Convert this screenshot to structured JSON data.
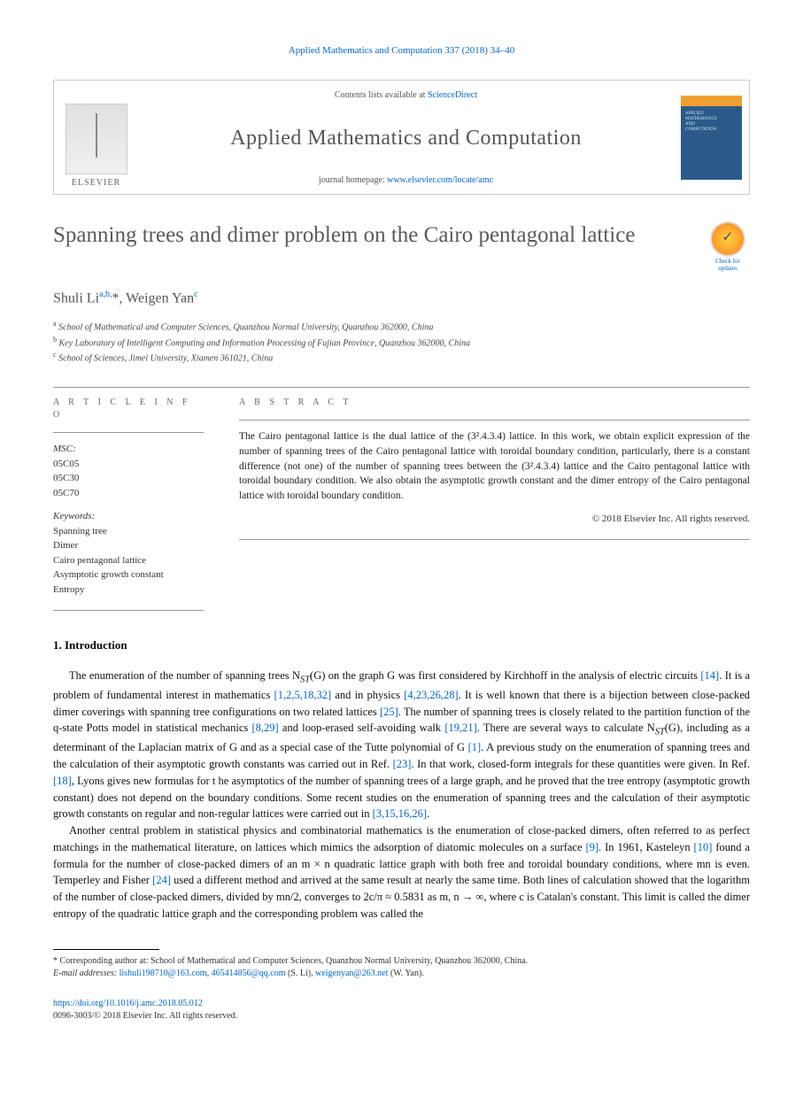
{
  "running_head": {
    "journal": "Applied Mathematics and Computation",
    "citation": "337 (2018) 34–40"
  },
  "masthead": {
    "contents_prefix": "Contents lists available at ",
    "contents_link": "ScienceDirect",
    "journal_name": "Applied Mathematics and Computation",
    "homepage_prefix": "journal homepage: ",
    "homepage_link": "www.elsevier.com/locate/amc",
    "publisher_label": "ELSEVIER",
    "cover_text": "APPLIED\nMATHEMATICS\nAND\nCOMPUTATION"
  },
  "crossmark": {
    "label": "Check for updates"
  },
  "article": {
    "title": "Spanning trees and dimer problem on the Cairo pentagonal lattice",
    "authors_html": "Shuli Li<sup>a,b,</sup>*, Weigen Yan<sup>c</sup>",
    "affiliations": [
      {
        "sup": "a",
        "text": "School of Mathematical and Computer Sciences, Quanzhou Normal University, Quanzhou 362000, China"
      },
      {
        "sup": "b",
        "text": "Key Laboratory of Intelligent Computing and Information Processing of Fujian Province, Quanzhou 362000, China"
      },
      {
        "sup": "c",
        "text": "School of Sciences, Jimei University, Xiamen 361021, China"
      }
    ]
  },
  "article_info": {
    "label": "A R T I C L E   I N F O",
    "msc_label": "MSC:",
    "msc": [
      "05C05",
      "05C30",
      "05C70"
    ],
    "keywords_label": "Keywords:",
    "keywords": [
      "Spanning tree",
      "Dimer",
      "Cairo pentagonal lattice",
      "Asymptotic growth constant",
      "Entropy"
    ]
  },
  "abstract": {
    "label": "A B S T R A C T",
    "text": "The Cairo pentagonal lattice is the dual lattice of the (3².4.3.4) lattice. In this work, we obtain explicit expression of the number of spanning trees of the Cairo pentagonal lattice with toroidal boundary condition, particularly, there is a constant difference (not one) of the number of spanning trees between the (3².4.3.4) lattice and the Cairo pentagonal lattice with toroidal boundary condition. We also obtain the asymptotic growth constant and the dimer entropy of the Cairo pentagonal lattice with toroidal boundary condition.",
    "copyright": "© 2018 Elsevier Inc. All rights reserved."
  },
  "body": {
    "section_number": "1.",
    "section_title": "Introduction",
    "para1_parts": [
      "The enumeration of the number of spanning trees N",
      "ST",
      "(G) on the graph G was first considered by Kirchhoff in the analysis of electric circuits ",
      "[14]",
      ". It is a problem of fundamental interest in mathematics ",
      "[1,2,5,18,32]",
      " and in physics ",
      "[4,23,26,28]",
      ". It is well known that there is a bijection between close-packed dimer coverings with spanning tree configurations on two related lattices ",
      "[25]",
      ". The number of spanning trees is closely related to the partition function of the q-state Potts model in statistical mechanics ",
      "[8,29]",
      " and loop-erased self-avoiding walk ",
      "[19,21]",
      ". There are several ways to calculate N",
      "ST",
      "(G), including as a determinant of the Laplacian matrix of G and as a special case of the Tutte polynomial of G ",
      "[1]",
      ". A previous study on the enumeration of spanning trees and the calculation of their asymptotic growth constants was carried out in Ref. ",
      "[23]",
      ". In that work, closed-form integrals for these quantities were given. In Ref. ",
      "[18]",
      ", Lyons gives new formulas for t he asymptotics of the number of spanning trees of a large graph, and he proved that the tree entropy (asymptotic growth constant) does not depend on the boundary conditions. Some recent studies on the enumeration of spanning trees and the calculation of their asymptotic growth constants on regular and non-regular lattices were carried out in ",
      "[3,15,16,26]",
      "."
    ],
    "para2_parts": [
      "Another central problem in statistical physics and combinatorial mathematics is the enumeration of close-packed dimers, often referred to as perfect matchings in the mathematical literature, on lattices which mimics the adsorption of diatomic molecules on a surface ",
      "[9]",
      ". In 1961, Kasteleyn ",
      "[10]",
      " found a formula for the number of close-packed dimers of an m × n quadratic lattice graph with both free and toroidal boundary conditions, where mn is even. Temperley and Fisher ",
      "[24]",
      " used a different method and arrived at the same result at nearly the same time. Both lines of calculation showed that the logarithm of the number of close-packed dimers, divided by mn/2, converges to 2c/π ≈ 0.5831 as m, n → ∞, where c is Catalan's constant. This limit is called the dimer entropy of the quadratic lattice graph and the corresponding problem was called the"
    ]
  },
  "footnote": {
    "marker": "*",
    "corresponding": "Corresponding author at: School of Mathematical and Computer Sciences, Quanzhou Normal University, Quanzhou 362000, China.",
    "email_label": "E-mail addresses:",
    "emails": [
      {
        "addr": "lishuli198710@163.com",
        "sep": ", "
      },
      {
        "addr": "465414856@qq.com",
        "sep": " (S. Li), "
      },
      {
        "addr": "weigenyan@263.net",
        "sep": " (W. Yan)."
      }
    ]
  },
  "footer": {
    "doi": "https://doi.org/10.1016/j.amc.2018.05.012",
    "issn_line": "0096-3003/© 2018 Elsevier Inc. All rights reserved."
  },
  "colors": {
    "link": "#0066cc",
    "title_gray": "#5a5a5a",
    "body_text": "#111111",
    "border": "#999999"
  }
}
